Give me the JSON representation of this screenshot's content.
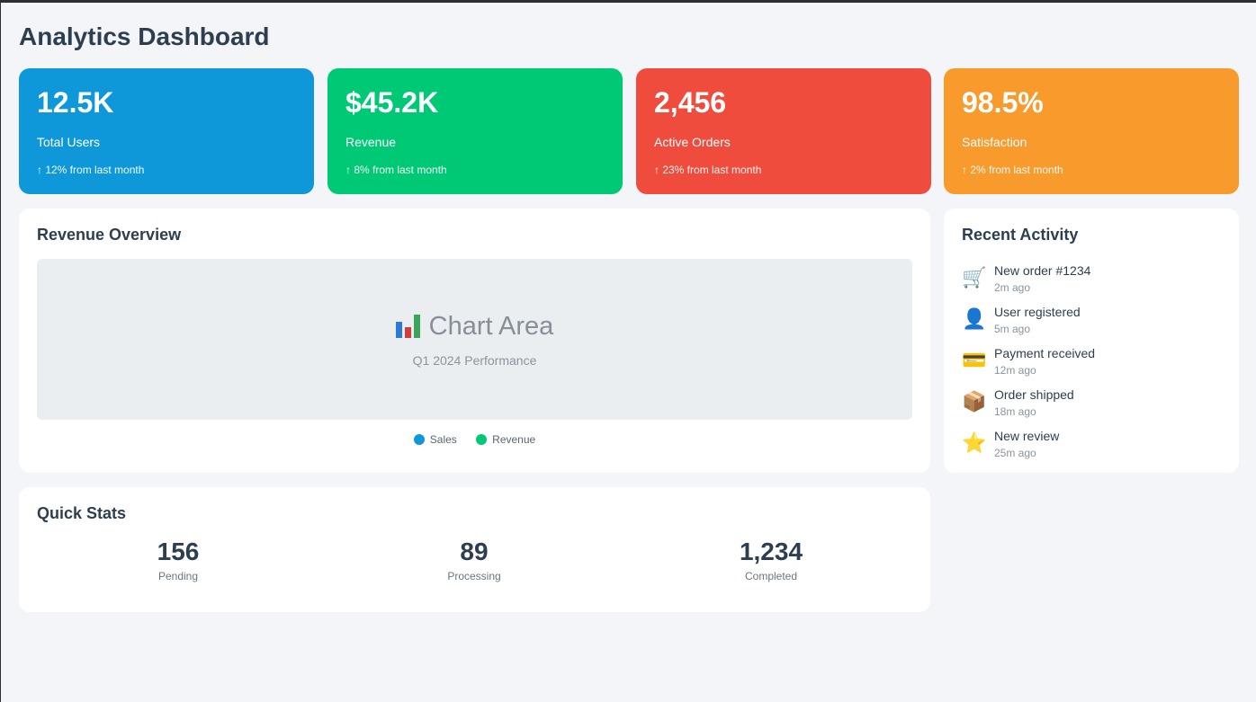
{
  "header": {
    "title": "Analytics Dashboard"
  },
  "kpis": [
    {
      "value": "12.5K",
      "label": "Total Users",
      "change": "↑ 12% from last month",
      "color": "#0e98d9"
    },
    {
      "value": "$45.2K",
      "label": "Revenue",
      "change": "↑ 8% from last month",
      "color": "#00c975"
    },
    {
      "value": "2,456",
      "label": "Active Orders",
      "change": "↑ 23% from last month",
      "color": "#f04c3e"
    },
    {
      "value": "98.5%",
      "label": "Satisfaction",
      "change": "↑ 2% from last month",
      "color": "#f89a2c"
    }
  ],
  "revenue_overview": {
    "title": "Revenue Overview",
    "chart_placeholder": "Chart Area",
    "chart_subtitle": "Q1 2024 Performance",
    "legend": [
      {
        "label": "Sales",
        "color": "#0e98d9"
      },
      {
        "label": "Revenue",
        "color": "#00c975"
      }
    ]
  },
  "recent_activity": {
    "title": "Recent Activity",
    "items": [
      {
        "icon": "cart-icon",
        "glyph": "🛒",
        "title": "New order #1234",
        "time": "2m ago"
      },
      {
        "icon": "user-icon",
        "glyph": "👤",
        "title": "User registered",
        "time": "5m ago"
      },
      {
        "icon": "credit-card-icon",
        "glyph": "💳",
        "title": "Payment received",
        "time": "12m ago"
      },
      {
        "icon": "package-icon",
        "glyph": "📦",
        "title": "Order shipped",
        "time": "18m ago"
      },
      {
        "icon": "star-icon",
        "glyph": "⭐",
        "title": "New review",
        "time": "25m ago"
      }
    ]
  },
  "quick_stats": {
    "title": "Quick Stats",
    "items": [
      {
        "value": "156",
        "label": "Pending"
      },
      {
        "value": "89",
        "label": "Processing"
      },
      {
        "value": "1,234",
        "label": "Completed"
      }
    ]
  }
}
